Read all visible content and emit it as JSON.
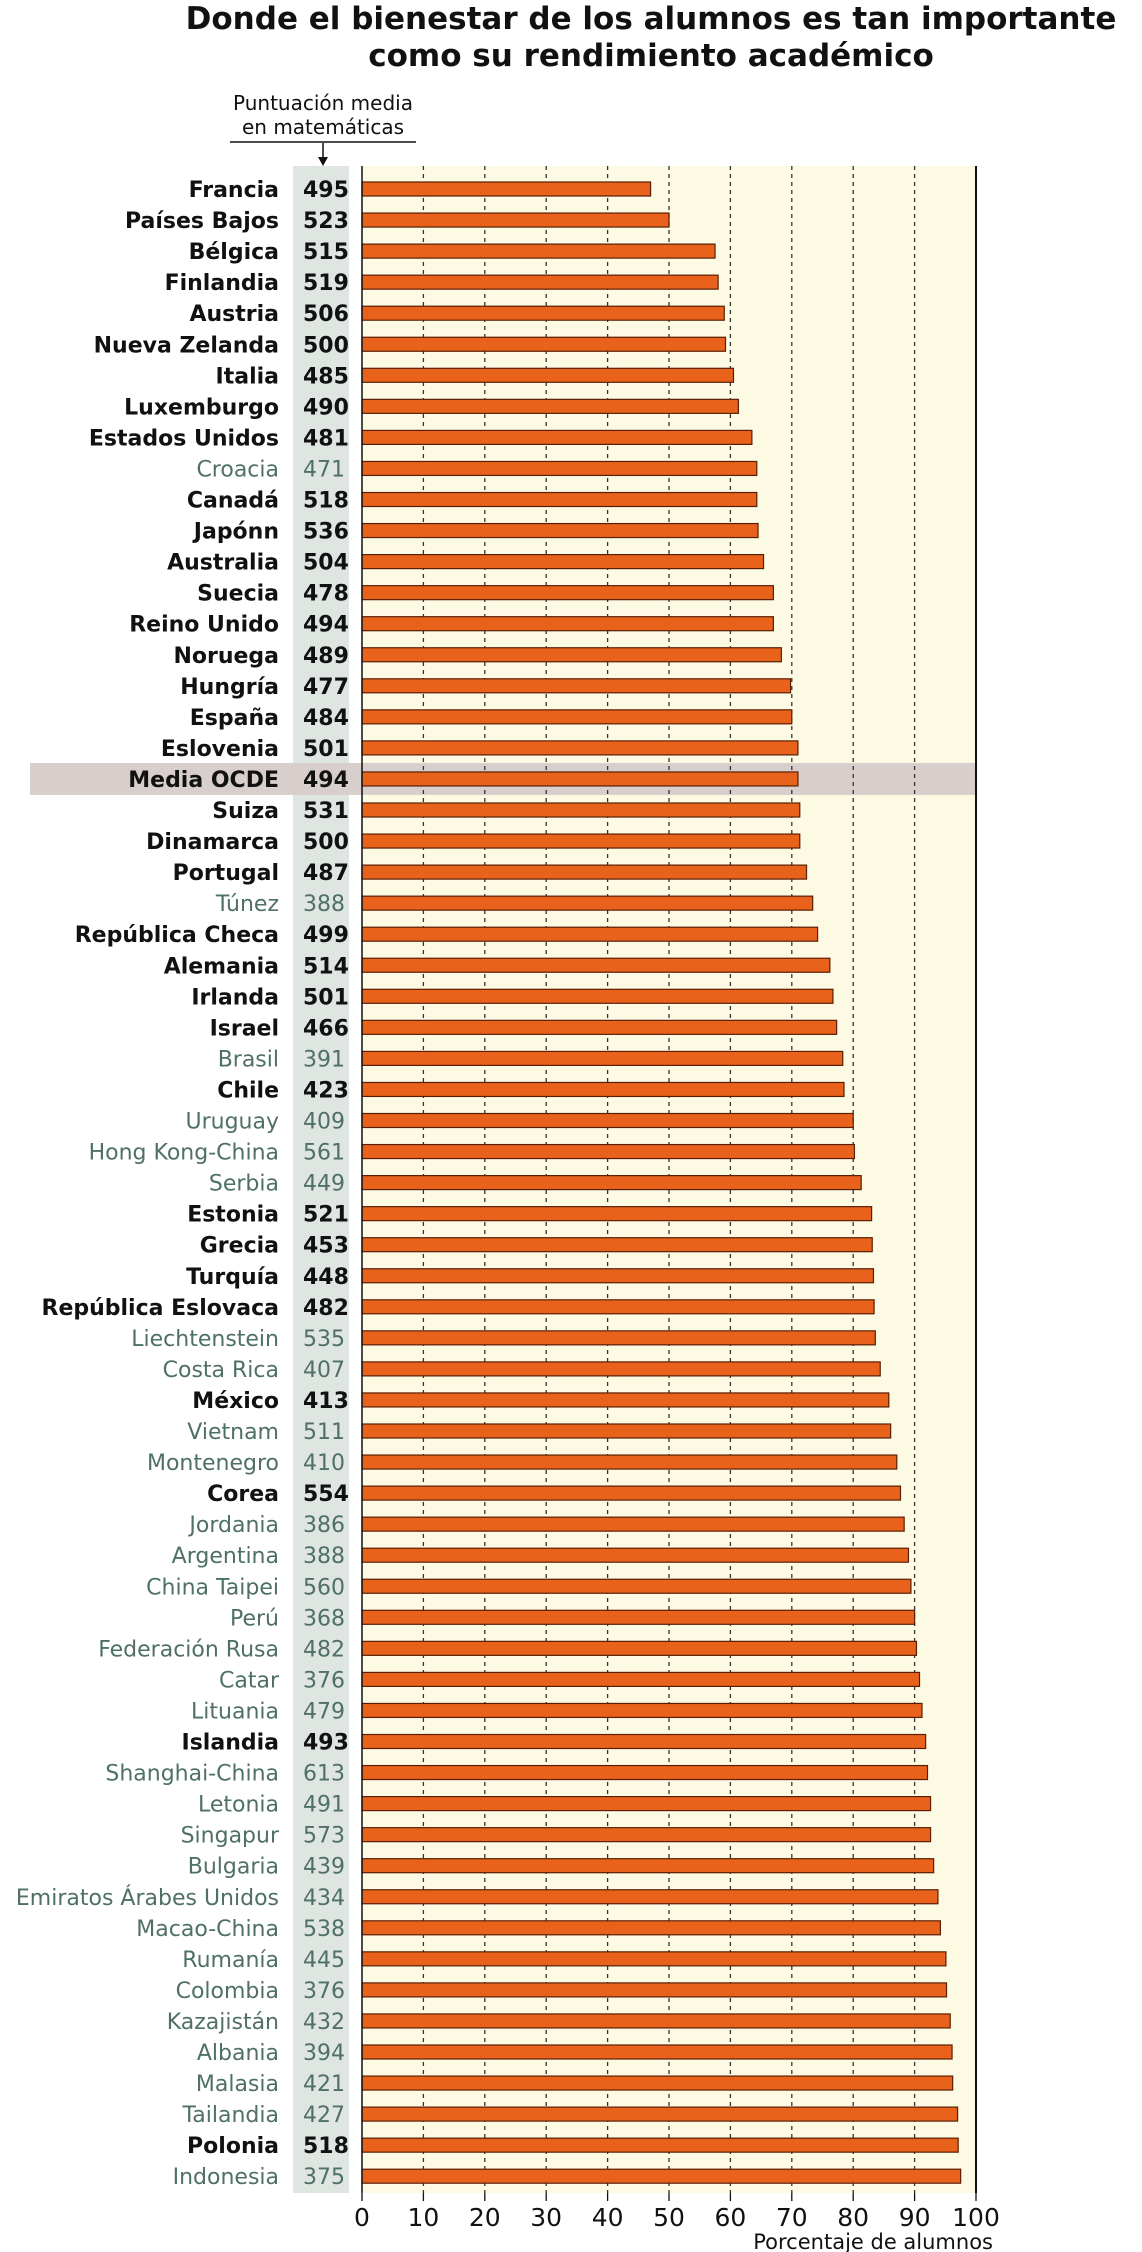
{
  "title": {
    "line1": "Donde el bienestar de los alumnos es tan importante",
    "line2": "como su rendimiento académico"
  },
  "score_header": {
    "line1": "Puntuación media",
    "line2": "en matemáticas"
  },
  "colors": {
    "bar_fill": "#e8621b",
    "bar_stroke": "#5a1e05",
    "plot_bg": "#fdfae4",
    "score_column_bg": "#dfe6e1",
    "highlight_band": "#d8cfcd",
    "oecd_member_text": "#111111",
    "partner_text": "#4f7066"
  },
  "chart_data": {
    "type": "bar",
    "orientation": "horizontal",
    "xlabel": "Porcentaje de alumnos",
    "xlim": [
      0,
      100
    ],
    "xticks": [
      0,
      10,
      20,
      30,
      40,
      50,
      60,
      70,
      80,
      90,
      100
    ],
    "grid": "vertical dashed",
    "highlight": "Media OCDE",
    "rows": [
      {
        "country": "Francia",
        "score": "495",
        "value": 47,
        "oecd": true
      },
      {
        "country": "Países Bajos",
        "score": "523",
        "value": 50,
        "oecd": true
      },
      {
        "country": "Bélgica",
        "score": "515",
        "value": 57.5,
        "oecd": true
      },
      {
        "country": "Finlandia",
        "score": "519",
        "value": 58,
        "oecd": true
      },
      {
        "country": "Austria",
        "score": "506",
        "value": 59,
        "oecd": true
      },
      {
        "country": "Nueva Zelanda",
        "score": "500",
        "value": 59.2,
        "oecd": true
      },
      {
        "country": "Italia",
        "score": "485",
        "value": 60.5,
        "oecd": true
      },
      {
        "country": "Luxemburgo",
        "score": "490",
        "value": 61.3,
        "oecd": true
      },
      {
        "country": "Estados Unidos",
        "score": "481",
        "value": 63.5,
        "oecd": true
      },
      {
        "country": "Croacia",
        "score": "471",
        "value": 64.3,
        "oecd": false
      },
      {
        "country": "Canadá",
        "score": "518",
        "value": 64.3,
        "oecd": true
      },
      {
        "country": "Japónn",
        "score": "536",
        "value": 64.5,
        "oecd": true
      },
      {
        "country": "Australia",
        "score": "504",
        "value": 65.4,
        "oecd": true
      },
      {
        "country": "Suecia",
        "score": "478",
        "value": 67,
        "oecd": true
      },
      {
        "country": "Reino Unido",
        "score": "494",
        "value": 67,
        "oecd": true
      },
      {
        "country": "Noruega",
        "score": "489",
        "value": 68.3,
        "oecd": true
      },
      {
        "country": "Hungría",
        "score": "477",
        "value": 69.8,
        "oecd": true
      },
      {
        "country": "España",
        "score": "484",
        "value": 70,
        "oecd": true
      },
      {
        "country": "Eslovenia",
        "score": "501",
        "value": 71,
        "oecd": true
      },
      {
        "country": "Media OCDE",
        "score": "494",
        "value": 71,
        "oecd": true
      },
      {
        "country": "Suiza",
        "score": "531",
        "value": 71.3,
        "oecd": true
      },
      {
        "country": "Dinamarca",
        "score": "500",
        "value": 71.3,
        "oecd": true
      },
      {
        "country": "Portugal",
        "score": "487",
        "value": 72.4,
        "oecd": true
      },
      {
        "country": "Túnez",
        "score": "388",
        "value": 73.4,
        "oecd": false
      },
      {
        "country": "República Checa",
        "score": "499",
        "value": 74.2,
        "oecd": true
      },
      {
        "country": "Alemania",
        "score": "514",
        "value": 76.2,
        "oecd": true
      },
      {
        "country": "Irlanda",
        "score": "501",
        "value": 76.7,
        "oecd": true
      },
      {
        "country": "Israel",
        "score": "466",
        "value": 77.3,
        "oecd": true
      },
      {
        "country": "Brasil",
        "score": "391",
        "value": 78.3,
        "oecd": false
      },
      {
        "country": "Chile",
        "score": "423",
        "value": 78.5,
        "oecd": true
      },
      {
        "country": "Uruguay",
        "score": "409",
        "value": 80,
        "oecd": false
      },
      {
        "country": "Hong Kong-China",
        "score": "561",
        "value": 80.2,
        "oecd": false
      },
      {
        "country": "Serbia",
        "score": "449",
        "value": 81.3,
        "oecd": false
      },
      {
        "country": "Estonia",
        "score": "521",
        "value": 83,
        "oecd": true
      },
      {
        "country": "Grecia",
        "score": "453",
        "value": 83.1,
        "oecd": true
      },
      {
        "country": "Turquía",
        "score": "448",
        "value": 83.3,
        "oecd": true
      },
      {
        "country": "República Eslovaca",
        "score": "482",
        "value": 83.4,
        "oecd": true
      },
      {
        "country": "Liechtenstein",
        "score": "535",
        "value": 83.6,
        "oecd": false
      },
      {
        "country": "Costa Rica",
        "score": "407",
        "value": 84.4,
        "oecd": false
      },
      {
        "country": "México",
        "score": "413",
        "value": 85.8,
        "oecd": true
      },
      {
        "country": "Vietnam",
        "score": "511",
        "value": 86.1,
        "oecd": false
      },
      {
        "country": "Montenegro",
        "score": "410",
        "value": 87.1,
        "oecd": false
      },
      {
        "country": "Corea",
        "score": "554",
        "value": 87.7,
        "oecd": true
      },
      {
        "country": "Jordania",
        "score": "386",
        "value": 88.3,
        "oecd": false
      },
      {
        "country": "Argentina",
        "score": "388",
        "value": 89,
        "oecd": false
      },
      {
        "country": "China Taipei",
        "score": "560",
        "value": 89.4,
        "oecd": false
      },
      {
        "country": "Perú",
        "score": "368",
        "value": 90,
        "oecd": false
      },
      {
        "country": "Federación Rusa",
        "score": "482",
        "value": 90.3,
        "oecd": false
      },
      {
        "country": "Catar",
        "score": "376",
        "value": 90.8,
        "oecd": false
      },
      {
        "country": "Lituania",
        "score": "479",
        "value": 91.2,
        "oecd": false
      },
      {
        "country": "Islandia",
        "score": "493",
        "value": 91.8,
        "oecd": true
      },
      {
        "country": "Shanghai-China",
        "score": "613",
        "value": 92.1,
        "oecd": false
      },
      {
        "country": "Letonia",
        "score": "491",
        "value": 92.6,
        "oecd": false
      },
      {
        "country": "Singapur",
        "score": "573",
        "value": 92.6,
        "oecd": false
      },
      {
        "country": "Bulgaria",
        "score": "439",
        "value": 93.1,
        "oecd": false
      },
      {
        "country": "Emiratos Árabes Unidos",
        "score": "434",
        "value": 93.8,
        "oecd": false
      },
      {
        "country": "Macao-China",
        "score": "538",
        "value": 94.2,
        "oecd": false
      },
      {
        "country": "Rumanía",
        "score": "445",
        "value": 95.1,
        "oecd": false
      },
      {
        "country": "Colombia",
        "score": "376",
        "value": 95.2,
        "oecd": false
      },
      {
        "country": "Kazajistán",
        "score": "432",
        "value": 95.8,
        "oecd": false
      },
      {
        "country": "Albania",
        "score": "394",
        "value": 96.1,
        "oecd": false
      },
      {
        "country": "Malasia",
        "score": "421",
        "value": 96.2,
        "oecd": false
      },
      {
        "country": "Tailandia",
        "score": "427",
        "value": 97,
        "oecd": false
      },
      {
        "country": "Polonia",
        "score": "518",
        "value": 97.1,
        "oecd": true
      },
      {
        "country": "Indonesia",
        "score": "375",
        "value": 97.5,
        "oecd": false
      }
    ]
  }
}
